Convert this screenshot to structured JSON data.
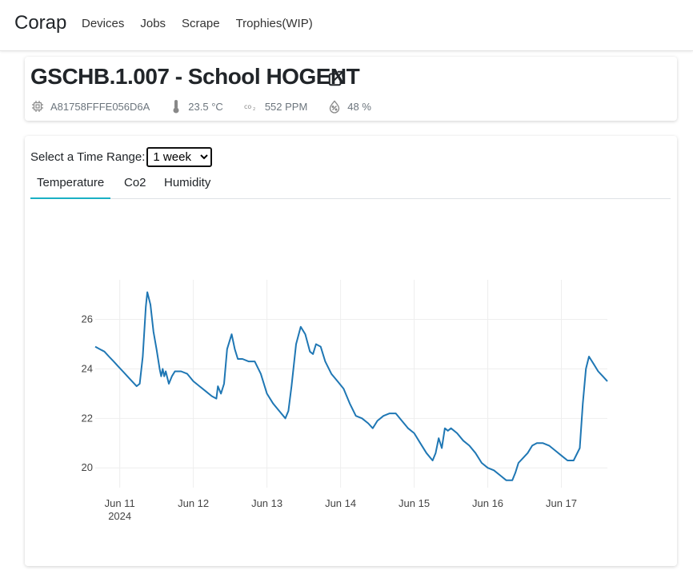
{
  "navbar": {
    "brand": "Corap",
    "links": [
      "Devices",
      "Jobs",
      "Scrape",
      "Trophies(WIP)"
    ]
  },
  "device": {
    "title": "GSCHB.1.007 - School HOGENT",
    "id": "A81758FFFE056D6A",
    "temperature": "23.5 °C",
    "co2": "552 PPM",
    "humidity": "48 %"
  },
  "icons": {
    "external_link": "external-link-icon",
    "chip": "chip-icon",
    "thermometer": "thermometer-icon",
    "co2": "co2-icon",
    "humidity": "humidity-icon"
  },
  "range": {
    "label": "Select a Time Range:",
    "selected": "1 week"
  },
  "tabs": [
    "Temperature",
    "Co2",
    "Humidity"
  ],
  "active_tab": "Temperature",
  "colors": {
    "line": "#1f77b4",
    "tab_active": "#1ab0c4",
    "grid": "#eeeeee"
  },
  "chart_data": {
    "type": "line",
    "title": "",
    "xlabel": "",
    "ylabel": "",
    "x_ticks": [
      "Jun 11",
      "Jun 12",
      "Jun 13",
      "Jun 14",
      "Jun 15",
      "Jun 16",
      "Jun 17"
    ],
    "x_tick_sub": "2024",
    "y_ticks": [
      20,
      22,
      24,
      26
    ],
    "xlim": [
      "2024-06-10 16:00",
      "2024-06-17 15:00"
    ],
    "ylim": [
      19.2,
      27.6
    ],
    "grid": true,
    "series": [
      {
        "values": [
          [
            "2024-06-10 16:00",
            24.9
          ],
          [
            "2024-06-10 17:30",
            24.8
          ],
          [
            "2024-06-10 19:00",
            24.7
          ],
          [
            "2024-06-10 20:30",
            24.5
          ],
          [
            "2024-06-10 22:00",
            24.3
          ],
          [
            "2024-06-10 23:30",
            24.1
          ],
          [
            "2024-06-11 01:00",
            23.9
          ],
          [
            "2024-06-11 02:30",
            23.7
          ],
          [
            "2024-06-11 04:00",
            23.5
          ],
          [
            "2024-06-11 05:30",
            23.3
          ],
          [
            "2024-06-11 06:30",
            23.4
          ],
          [
            "2024-06-11 07:30",
            24.5
          ],
          [
            "2024-06-11 08:30",
            26.5
          ],
          [
            "2024-06-11 09:00",
            27.1
          ],
          [
            "2024-06-11 10:00",
            26.6
          ],
          [
            "2024-06-11 11:00",
            25.5
          ],
          [
            "2024-06-11 12:00",
            24.8
          ],
          [
            "2024-06-11 13:00",
            24.0
          ],
          [
            "2024-06-11 13:30",
            23.7
          ],
          [
            "2024-06-11 14:00",
            24.0
          ],
          [
            "2024-06-11 14:30",
            23.7
          ],
          [
            "2024-06-11 15:00",
            23.9
          ],
          [
            "2024-06-11 16:00",
            23.4
          ],
          [
            "2024-06-11 17:00",
            23.7
          ],
          [
            "2024-06-11 18:00",
            23.9
          ],
          [
            "2024-06-11 20:00",
            23.9
          ],
          [
            "2024-06-11 22:00",
            23.8
          ],
          [
            "2024-06-12 00:00",
            23.5
          ],
          [
            "2024-06-12 02:00",
            23.3
          ],
          [
            "2024-06-12 04:00",
            23.1
          ],
          [
            "2024-06-12 06:00",
            22.9
          ],
          [
            "2024-06-12 07:30",
            22.8
          ],
          [
            "2024-06-12 08:00",
            23.3
          ],
          [
            "2024-06-12 09:00",
            23.0
          ],
          [
            "2024-06-12 10:00",
            23.4
          ],
          [
            "2024-06-12 11:00",
            24.8
          ],
          [
            "2024-06-12 12:30",
            25.4
          ],
          [
            "2024-06-12 13:30",
            24.8
          ],
          [
            "2024-06-12 14:30",
            24.4
          ],
          [
            "2024-06-12 16:00",
            24.4
          ],
          [
            "2024-06-12 18:00",
            24.3
          ],
          [
            "2024-06-12 20:00",
            24.3
          ],
          [
            "2024-06-12 22:00",
            23.8
          ],
          [
            "2024-06-13 00:00",
            23.0
          ],
          [
            "2024-06-13 02:00",
            22.6
          ],
          [
            "2024-06-13 04:00",
            22.3
          ],
          [
            "2024-06-13 06:00",
            22.0
          ],
          [
            "2024-06-13 07:00",
            22.3
          ],
          [
            "2024-06-13 08:00",
            23.3
          ],
          [
            "2024-06-13 09:30",
            25.0
          ],
          [
            "2024-06-13 11:00",
            25.7
          ],
          [
            "2024-06-13 12:30",
            25.4
          ],
          [
            "2024-06-13 14:00",
            24.7
          ],
          [
            "2024-06-13 15:00",
            24.6
          ],
          [
            "2024-06-13 16:00",
            25.0
          ],
          [
            "2024-06-13 17:30",
            24.9
          ],
          [
            "2024-06-13 19:00",
            24.3
          ],
          [
            "2024-06-13 21:00",
            23.8
          ],
          [
            "2024-06-13 23:00",
            23.5
          ],
          [
            "2024-06-14 01:00",
            23.2
          ],
          [
            "2024-06-14 03:00",
            22.6
          ],
          [
            "2024-06-14 05:00",
            22.1
          ],
          [
            "2024-06-14 07:00",
            22.0
          ],
          [
            "2024-06-14 09:00",
            21.8
          ],
          [
            "2024-06-14 10:30",
            21.6
          ],
          [
            "2024-06-14 12:00",
            21.9
          ],
          [
            "2024-06-14 14:00",
            22.1
          ],
          [
            "2024-06-14 16:00",
            22.2
          ],
          [
            "2024-06-14 18:00",
            22.2
          ],
          [
            "2024-06-14 20:00",
            21.9
          ],
          [
            "2024-06-14 22:00",
            21.6
          ],
          [
            "2024-06-15 00:00",
            21.4
          ],
          [
            "2024-06-15 02:00",
            21.0
          ],
          [
            "2024-06-15 04:00",
            20.6
          ],
          [
            "2024-06-15 06:00",
            20.3
          ],
          [
            "2024-06-15 07:00",
            20.6
          ],
          [
            "2024-06-15 08:00",
            21.2
          ],
          [
            "2024-06-15 09:00",
            20.8
          ],
          [
            "2024-06-15 10:00",
            21.6
          ],
          [
            "2024-06-15 11:00",
            21.5
          ],
          [
            "2024-06-15 12:00",
            21.6
          ],
          [
            "2024-06-15 14:00",
            21.4
          ],
          [
            "2024-06-15 16:00",
            21.1
          ],
          [
            "2024-06-15 18:00",
            20.9
          ],
          [
            "2024-06-15 20:00",
            20.6
          ],
          [
            "2024-06-15 22:00",
            20.2
          ],
          [
            "2024-06-16 00:00",
            20.0
          ],
          [
            "2024-06-16 02:00",
            19.9
          ],
          [
            "2024-06-16 04:00",
            19.7
          ],
          [
            "2024-06-16 06:00",
            19.5
          ],
          [
            "2024-06-16 08:00",
            19.5
          ],
          [
            "2024-06-16 09:00",
            19.8
          ],
          [
            "2024-06-16 10:00",
            20.2
          ],
          [
            "2024-06-16 11:30",
            20.4
          ],
          [
            "2024-06-16 13:00",
            20.6
          ],
          [
            "2024-06-16 14:30",
            20.9
          ],
          [
            "2024-06-16 16:00",
            21.0
          ],
          [
            "2024-06-16 18:00",
            21.0
          ],
          [
            "2024-06-16 20:00",
            20.9
          ],
          [
            "2024-06-16 22:00",
            20.7
          ],
          [
            "2024-06-17 00:00",
            20.5
          ],
          [
            "2024-06-17 02:00",
            20.3
          ],
          [
            "2024-06-17 04:00",
            20.3
          ],
          [
            "2024-06-17 06:00",
            20.8
          ],
          [
            "2024-06-17 07:00",
            22.6
          ],
          [
            "2024-06-17 08:00",
            24.0
          ],
          [
            "2024-06-17 09:00",
            24.5
          ],
          [
            "2024-06-17 10:30",
            24.2
          ],
          [
            "2024-06-17 12:00",
            23.9
          ],
          [
            "2024-06-17 13:30",
            23.7
          ],
          [
            "2024-06-17 15:00",
            23.5
          ]
        ]
      }
    ]
  }
}
